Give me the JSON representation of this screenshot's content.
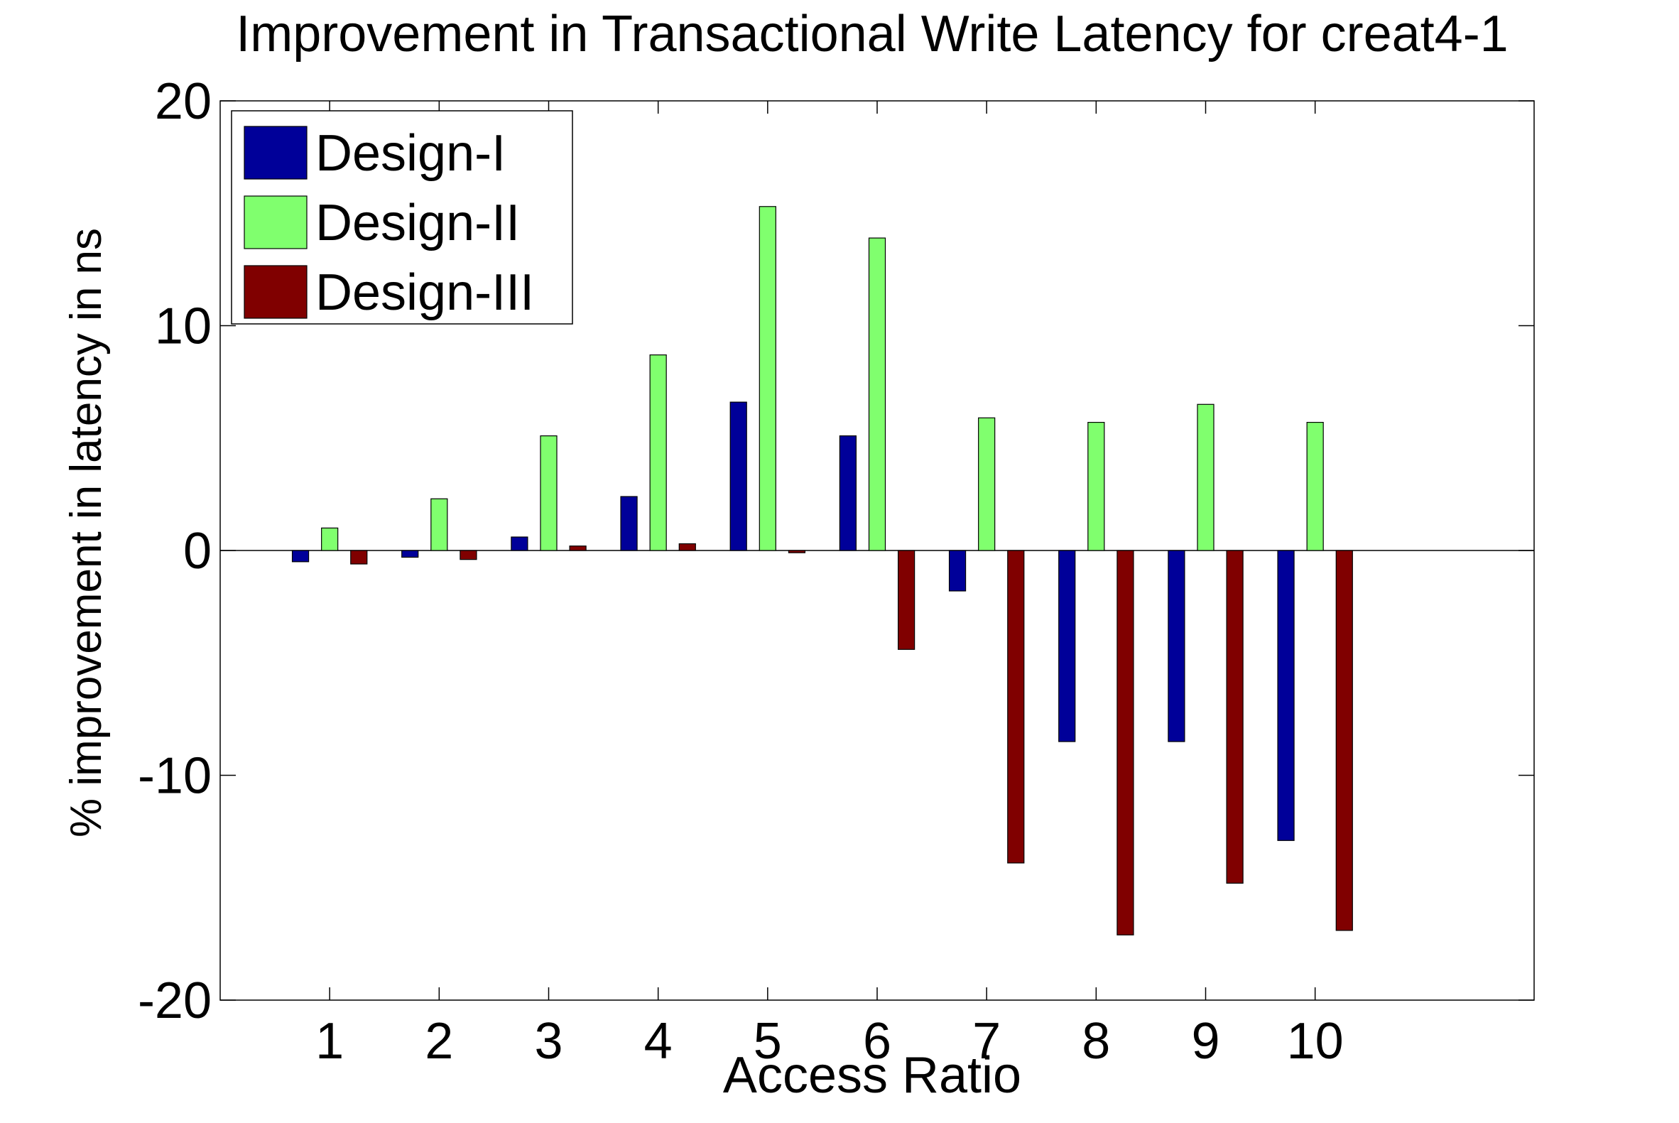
{
  "chart_data": {
    "type": "bar",
    "title": "Improvement in Transactional Write Latency for creat4-1",
    "xlabel": "Access Ratio",
    "ylabel": "% improvement in latency in ns",
    "categories": [
      "1",
      "2",
      "3",
      "4",
      "5",
      "6",
      "7",
      "8",
      "9",
      "10"
    ],
    "xlim": [
      0,
      12
    ],
    "ylim": [
      -20,
      20
    ],
    "yticks": [
      -20,
      -10,
      0,
      10,
      20
    ],
    "grid": false,
    "legend_position": "top-left",
    "series": [
      {
        "name": "Design-I",
        "color": "#000099",
        "values": [
          -0.5,
          -0.3,
          0.6,
          2.4,
          6.6,
          5.1,
          -1.8,
          -8.5,
          -8.5,
          -12.9
        ]
      },
      {
        "name": "Design-II",
        "color": "#80ff6e",
        "values": [
          1.0,
          2.3,
          5.1,
          8.7,
          15.3,
          13.9,
          5.9,
          5.7,
          6.5,
          5.7
        ]
      },
      {
        "name": "Design-III",
        "color": "#800000",
        "values": [
          -0.6,
          -0.4,
          0.2,
          0.3,
          -0.1,
          -4.4,
          -13.9,
          -17.1,
          -14.8,
          -16.9
        ]
      }
    ]
  }
}
